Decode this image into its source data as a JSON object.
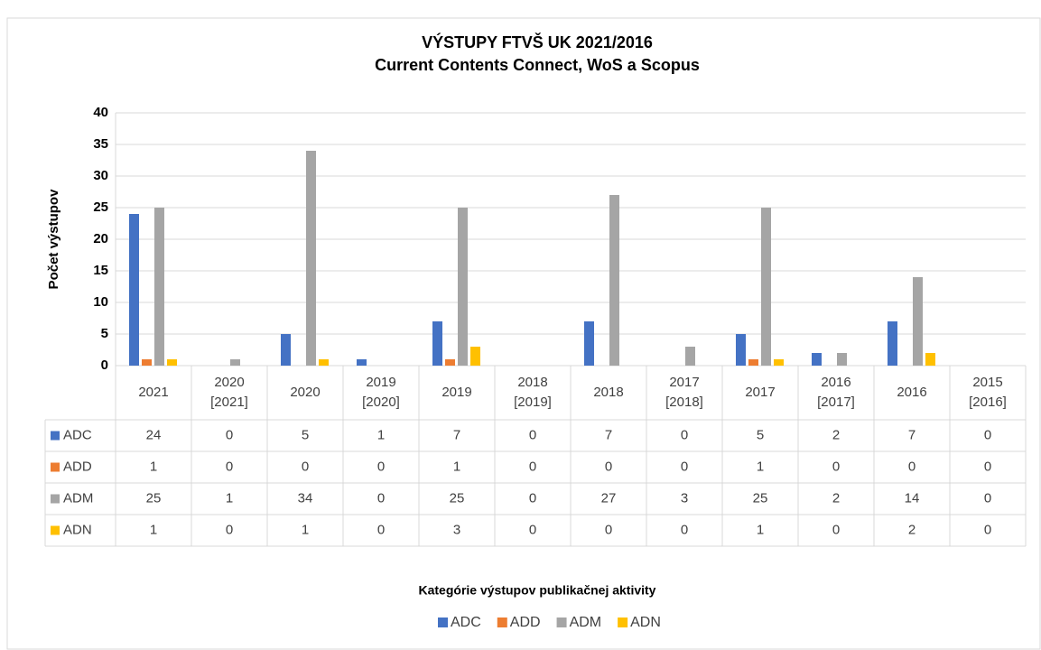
{
  "chart_data": {
    "type": "bar",
    "title": "VÝSTUPY FTVŠ UK 2021/2016",
    "subtitle": "Current Contents Connect, WoS a Scopus",
    "y_label": "Počet výstupov",
    "x_label": "Kategórie výstupov publikačnej aktivity",
    "categories": [
      "2021",
      "2020 [2021]",
      "2020",
      "2019 [2020]",
      "2019",
      "2018 [2019]",
      "2018",
      "2017 [2018]",
      "2017",
      "2016 [2017]",
      "2016",
      "2015 [2016]"
    ],
    "series": [
      {
        "name": "ADC",
        "color": "#4472c4",
        "values": [
          24,
          0,
          5,
          1,
          7,
          0,
          7,
          0,
          5,
          2,
          7,
          0
        ]
      },
      {
        "name": "ADD",
        "color": "#ed7d31",
        "values": [
          1,
          0,
          0,
          0,
          1,
          0,
          0,
          0,
          1,
          0,
          0,
          0
        ]
      },
      {
        "name": "ADM",
        "color": "#a5a5a5",
        "values": [
          25,
          1,
          34,
          0,
          25,
          0,
          27,
          3,
          25,
          2,
          14,
          0
        ]
      },
      {
        "name": "ADN",
        "color": "#ffc000",
        "values": [
          1,
          0,
          1,
          0,
          3,
          0,
          0,
          0,
          1,
          0,
          2,
          0
        ]
      }
    ],
    "ylim": [
      0,
      40
    ],
    "yticks": [
      0,
      5,
      10,
      15,
      20,
      25,
      30,
      35,
      40
    ],
    "grid": true,
    "legend": "bottom"
  }
}
